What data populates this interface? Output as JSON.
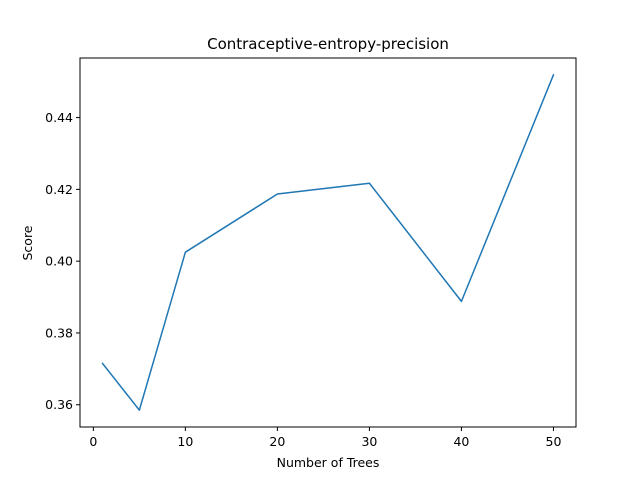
{
  "chart_data": {
    "type": "line",
    "title": "Contraceptive-entropy-precision",
    "xlabel": "Number of Trees",
    "ylabel": "Score",
    "x": [
      1,
      5,
      10,
      20,
      30,
      40,
      50
    ],
    "series": [
      {
        "values": [
          0.3715,
          0.3585,
          0.4025,
          0.4187,
          0.4217,
          0.3888,
          0.4519
        ],
        "color": "#1f77b4"
      }
    ],
    "xticks": [
      0,
      10,
      20,
      30,
      40,
      50
    ],
    "yticks": [
      0.36,
      0.38,
      0.4,
      0.42,
      0.44
    ],
    "ytick_labels": [
      "0.36",
      "0.38",
      "0.40",
      "0.42",
      "0.44"
    ],
    "xlim": [
      -1.45,
      52.45
    ],
    "ylim": [
      0.3538,
      0.4566
    ],
    "grid": false
  }
}
